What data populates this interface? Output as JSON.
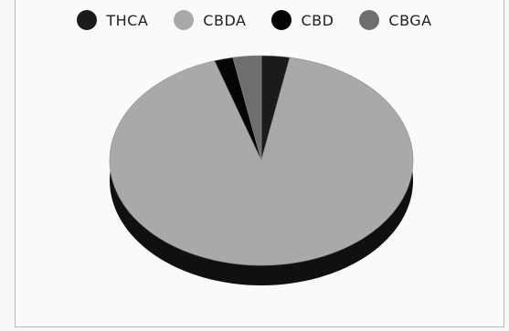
{
  "chart_data": {
    "type": "pie",
    "title": "",
    "legend_position": "top",
    "categories": [
      "THCA",
      "CBDA",
      "CBD",
      "CBGA"
    ],
    "values": [
      3,
      92,
      2,
      3
    ],
    "colors": [
      "#1b1b1b",
      "#a9a9a9",
      "#050505",
      "#6e6e6e"
    ],
    "depth_color": "#101010",
    "labels": {
      "THCA": "THCA",
      "CBDA": "CBDA",
      "CBD": "CBD",
      "CBGA": "CBGA"
    }
  }
}
